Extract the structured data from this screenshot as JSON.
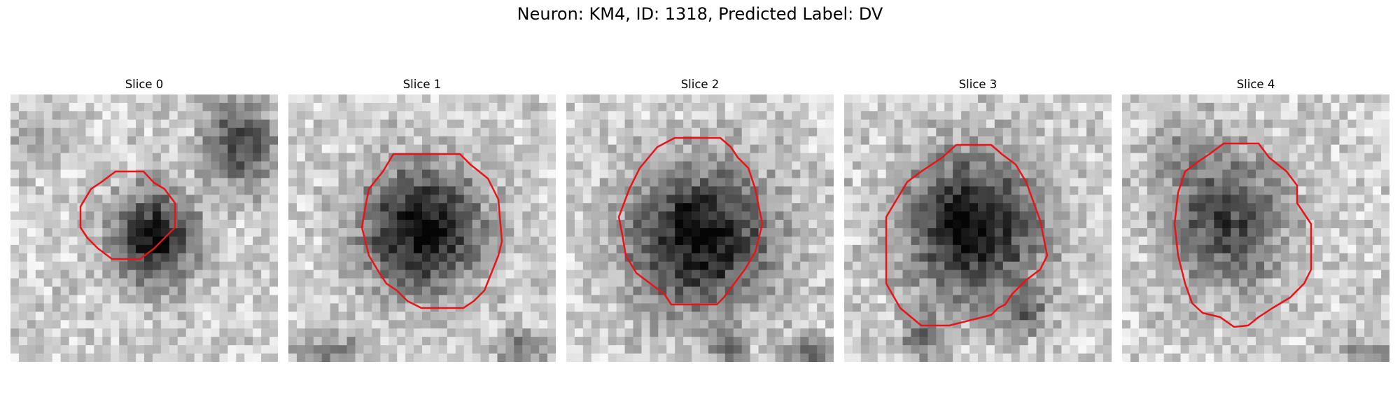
{
  "figure": {
    "title": "Neuron: KM4, ID: 1318, Predicted Label: DV"
  },
  "panels": [
    {
      "title": "Slice 0"
    },
    {
      "title": "Slice 1"
    },
    {
      "title": "Slice 2"
    },
    {
      "title": "Slice 3"
    },
    {
      "title": "Slice 4"
    }
  ],
  "colors": {
    "contour": "#e8141a",
    "background": "#ffffff"
  }
}
